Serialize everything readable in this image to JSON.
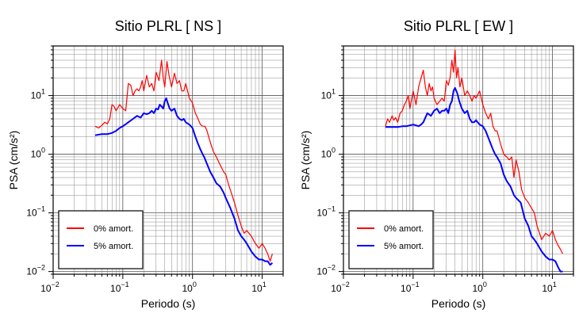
{
  "chart_data": [
    {
      "type": "line",
      "title": "Sitio PLRL [ NS ]",
      "xlabel": "Periodo (s)",
      "ylabel": "PSA (cm/s²)",
      "xscale": "log",
      "yscale": "log",
      "xlim": [
        0.01,
        20
      ],
      "ylim": [
        0.009,
        70
      ],
      "grid": true,
      "legend": {
        "position": "bottom-left"
      },
      "xticks": [
        {
          "value": 0.01,
          "base": "10",
          "exp": "−2"
        },
        {
          "value": 0.1,
          "base": "10",
          "exp": "−1"
        },
        {
          "value": 1,
          "base": "10",
          "exp": "0"
        },
        {
          "value": 10,
          "base": "10",
          "exp": "1"
        }
      ],
      "yticks": [
        {
          "value": 0.01,
          "base": "10",
          "exp": "−2"
        },
        {
          "value": 0.1,
          "base": "10",
          "exp": "−1"
        },
        {
          "value": 1,
          "base": "10",
          "exp": "0"
        },
        {
          "value": 10,
          "base": "10",
          "exp": "1"
        }
      ],
      "series": [
        {
          "name": "0% amort.",
          "color": "#ff0000",
          "x": [
            0.04,
            0.045,
            0.05,
            0.055,
            0.06,
            0.065,
            0.07,
            0.075,
            0.08,
            0.09,
            0.1,
            0.11,
            0.12,
            0.13,
            0.14,
            0.15,
            0.16,
            0.17,
            0.18,
            0.19,
            0.2,
            0.22,
            0.24,
            0.26,
            0.28,
            0.3,
            0.33,
            0.36,
            0.38,
            0.4,
            0.43,
            0.46,
            0.5,
            0.55,
            0.6,
            0.65,
            0.7,
            0.75,
            0.8,
            0.9,
            1.0,
            1.1,
            1.2,
            1.3,
            1.4,
            1.5,
            1.6,
            1.8,
            2.0,
            2.2,
            2.5,
            2.8,
            3.0,
            3.3,
            3.6,
            4.0,
            4.5,
            5.0,
            5.5,
            6.0,
            7.0,
            8.0,
            9.0,
            10.0,
            11.0,
            12.0,
            13.0,
            14.0
          ],
          "y": [
            3.0,
            2.8,
            3.1,
            3.5,
            3.3,
            4.0,
            7.0,
            6.5,
            5.5,
            7.0,
            6.0,
            5.5,
            16.0,
            15.0,
            10.0,
            12.0,
            13.0,
            12.0,
            14.0,
            18.0,
            12.0,
            22.0,
            14.0,
            16.0,
            12.0,
            25.0,
            18.0,
            40.0,
            20.0,
            14.0,
            38.0,
            22.0,
            14.0,
            24.0,
            16.0,
            18.0,
            12.0,
            12.0,
            16.0,
            9.0,
            7.5,
            5.0,
            4.0,
            3.2,
            3.0,
            3.0,
            2.6,
            1.6,
            1.1,
            0.9,
            0.65,
            0.5,
            0.45,
            0.3,
            0.22,
            0.15,
            0.09,
            0.06,
            0.045,
            0.05,
            0.04,
            0.03,
            0.025,
            0.03,
            0.025,
            0.02,
            0.015,
            0.02
          ]
        },
        {
          "name": "5% amort.",
          "color": "#0000ff",
          "x": [
            0.04,
            0.05,
            0.06,
            0.07,
            0.08,
            0.09,
            0.1,
            0.12,
            0.14,
            0.16,
            0.18,
            0.2,
            0.22,
            0.24,
            0.26,
            0.28,
            0.3,
            0.32,
            0.34,
            0.36,
            0.38,
            0.4,
            0.42,
            0.44,
            0.47,
            0.5,
            0.55,
            0.6,
            0.65,
            0.7,
            0.75,
            0.8,
            0.9,
            1.0,
            1.1,
            1.2,
            1.3,
            1.4,
            1.5,
            1.6,
            1.8,
            2.0,
            2.2,
            2.5,
            2.8,
            3.0,
            3.5,
            4.0,
            4.5,
            5.0,
            5.5,
            6.0,
            7.0,
            8.0,
            9.0,
            10.0,
            11.0,
            12.0,
            13.0,
            14.0
          ],
          "y": [
            2.1,
            2.2,
            2.2,
            2.3,
            2.5,
            2.8,
            3.0,
            3.5,
            4.0,
            4.5,
            4.2,
            5.0,
            4.8,
            5.0,
            5.5,
            5.0,
            6.0,
            5.8,
            7.0,
            6.5,
            6.0,
            8.0,
            9.0,
            7.5,
            6.0,
            5.5,
            6.0,
            4.5,
            4.0,
            3.8,
            4.0,
            3.5,
            3.2,
            2.8,
            2.0,
            1.5,
            1.2,
            1.0,
            0.85,
            0.7,
            0.5,
            0.4,
            0.32,
            0.28,
            0.22,
            0.18,
            0.12,
            0.08,
            0.05,
            0.04,
            0.035,
            0.03,
            0.022,
            0.018,
            0.016,
            0.016,
            0.015,
            0.015,
            0.013,
            0.014
          ]
        }
      ]
    },
    {
      "type": "line",
      "title": "Sitio PLRL [ EW ]",
      "xlabel": "Periodo (s)",
      "ylabel": "PSA (cm/s²)",
      "xscale": "log",
      "yscale": "log",
      "xlim": [
        0.01,
        20
      ],
      "ylim": [
        0.009,
        70
      ],
      "grid": true,
      "legend": {
        "position": "bottom-left"
      },
      "xticks": [
        {
          "value": 0.01,
          "base": "10",
          "exp": "−2"
        },
        {
          "value": 0.1,
          "base": "10",
          "exp": "−1"
        },
        {
          "value": 1,
          "base": "10",
          "exp": "0"
        },
        {
          "value": 10,
          "base": "10",
          "exp": "1"
        }
      ],
      "yticks": [
        {
          "value": 0.01,
          "base": "10",
          "exp": "−2"
        },
        {
          "value": 0.1,
          "base": "10",
          "exp": "−1"
        },
        {
          "value": 1,
          "base": "10",
          "exp": "0"
        },
        {
          "value": 10,
          "base": "10",
          "exp": "1"
        }
      ],
      "series": [
        {
          "name": "0% amort.",
          "color": "#ff0000",
          "x": [
            0.04,
            0.043,
            0.046,
            0.05,
            0.053,
            0.056,
            0.06,
            0.065,
            0.07,
            0.075,
            0.08,
            0.085,
            0.09,
            0.1,
            0.11,
            0.12,
            0.13,
            0.14,
            0.15,
            0.16,
            0.17,
            0.18,
            0.19,
            0.2,
            0.22,
            0.24,
            0.26,
            0.28,
            0.3,
            0.32,
            0.34,
            0.36,
            0.38,
            0.4,
            0.42,
            0.44,
            0.47,
            0.5,
            0.55,
            0.6,
            0.65,
            0.7,
            0.75,
            0.8,
            0.9,
            1.0,
            1.1,
            1.2,
            1.3,
            1.4,
            1.5,
            1.6,
            1.8,
            2.0,
            2.2,
            2.4,
            2.6,
            2.8,
            3.0,
            3.3,
            3.6,
            4.0,
            4.5,
            5.0,
            5.5,
            6.0,
            7.0,
            8.0,
            9.0,
            10.0,
            11.0,
            12.0,
            13.0,
            14.0
          ],
          "y": [
            3.0,
            4.0,
            3.5,
            4.5,
            3.8,
            4.2,
            3.5,
            5.0,
            5.5,
            7.0,
            8.0,
            10.0,
            6.0,
            12.0,
            7.0,
            14.0,
            20.0,
            27.0,
            14.0,
            10.0,
            16.0,
            12.0,
            14.0,
            9.0,
            7.0,
            8.0,
            9.0,
            8.0,
            18.0,
            15.0,
            20.0,
            40.0,
            25.0,
            60.0,
            20.0,
            30.0,
            14.0,
            20.0,
            10.0,
            12.0,
            10.0,
            8.0,
            10.0,
            9.0,
            12.0,
            7.0,
            5.0,
            4.0,
            5.0,
            3.0,
            2.5,
            2.5,
            1.5,
            1.0,
            0.9,
            0.8,
            0.9,
            0.4,
            0.8,
            0.5,
            0.25,
            0.18,
            0.15,
            0.12,
            0.1,
            0.06,
            0.035,
            0.045,
            0.04,
            0.05,
            0.035,
            0.028,
            0.024,
            0.02
          ]
        },
        {
          "name": "5% amort.",
          "color": "#0000ff",
          "x": [
            0.04,
            0.05,
            0.06,
            0.07,
            0.08,
            0.09,
            0.1,
            0.11,
            0.12,
            0.13,
            0.14,
            0.16,
            0.18,
            0.2,
            0.22,
            0.24,
            0.26,
            0.28,
            0.3,
            0.32,
            0.34,
            0.36,
            0.38,
            0.4,
            0.43,
            0.46,
            0.5,
            0.55,
            0.6,
            0.65,
            0.7,
            0.75,
            0.8,
            0.9,
            1.0,
            1.1,
            1.2,
            1.3,
            1.4,
            1.5,
            1.6,
            1.8,
            2.0,
            2.2,
            2.5,
            2.8,
            3.0,
            3.5,
            4.0,
            4.5,
            5.0,
            5.5,
            6.0,
            7.0,
            8.0,
            9.0,
            10.0,
            11.0,
            12.0,
            13.0,
            14.0
          ],
          "y": [
            2.9,
            2.9,
            2.9,
            3.0,
            3.0,
            3.1,
            3.2,
            3.1,
            3.0,
            3.2,
            3.5,
            5.0,
            4.5,
            5.5,
            6.0,
            5.0,
            5.5,
            5.5,
            6.0,
            5.0,
            7.0,
            8.0,
            12.0,
            13.5,
            11.0,
            8.0,
            6.0,
            5.0,
            5.5,
            4.0,
            3.5,
            3.5,
            3.8,
            3.2,
            3.0,
            2.5,
            1.9,
            1.5,
            1.2,
            1.0,
            0.9,
            0.7,
            0.45,
            0.35,
            0.28,
            0.2,
            0.18,
            0.15,
            0.08,
            0.06,
            0.04,
            0.035,
            0.03,
            0.022,
            0.018,
            0.016,
            0.016,
            0.015,
            0.012,
            0.01,
            0.01
          ]
        }
      ]
    }
  ]
}
